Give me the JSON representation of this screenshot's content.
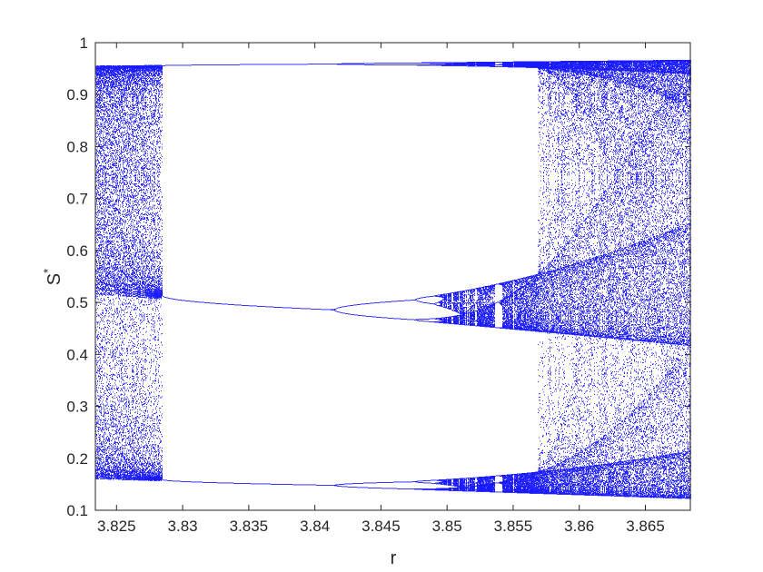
{
  "chart_data": {
    "type": "scatter",
    "title": "",
    "xlabel": "r",
    "ylabel": "S",
    "ylabel_superscript": "*",
    "xlim": [
      3.8234,
      3.8684
    ],
    "ylim": [
      0.1,
      1.0
    ],
    "xticks": [
      "3.825",
      "3.83",
      "3.835",
      "3.84",
      "3.845",
      "3.85",
      "3.855",
      "3.86",
      "3.865"
    ],
    "xtick_values": [
      3.825,
      3.83,
      3.835,
      3.84,
      3.845,
      3.85,
      3.855,
      3.86,
      3.865
    ],
    "yticks": [
      "0.1",
      "0.2",
      "0.3",
      "0.4",
      "0.5",
      "0.6",
      "0.7",
      "0.8",
      "0.9",
      "1"
    ],
    "ytick_values": [
      0.1,
      0.2,
      0.3,
      0.4,
      0.5,
      0.6,
      0.7,
      0.8,
      0.9,
      1.0
    ],
    "grid": false,
    "legend": "none",
    "colors": {
      "points": "#0000ff",
      "axes": "#262626",
      "background": "#ffffff"
    },
    "series": [
      {
        "regime": "chaotic",
        "r_range": [
          3.8234,
          3.8285
        ],
        "s_range": [
          0.16,
          0.96
        ]
      },
      {
        "regime": "period-3 window",
        "r_range": [
          3.8285,
          3.8569
        ],
        "branches": [
          {
            "r": [
              3.8285,
              3.835,
              3.8415,
              3.848
            ],
            "s": [
              0.958,
              0.959,
              0.96,
              0.961
            ]
          },
          {
            "r": [
              3.8285,
              3.835,
              3.8415
            ],
            "s": [
              0.51,
              0.495,
              0.487
            ]
          },
          {
            "r": [
              3.8285,
              3.835,
              3.8415
            ],
            "s": [
              0.16,
              0.154,
              0.149
            ]
          }
        ],
        "bifurcation_r": 3.8415
      },
      {
        "regime": "chaotic",
        "r_range": [
          3.8569,
          3.8684
        ],
        "s_range": [
          0.12,
          0.97
        ]
      }
    ]
  }
}
